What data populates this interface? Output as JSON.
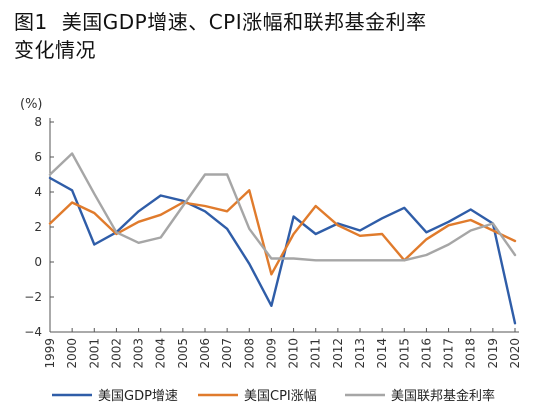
{
  "figure_label": "图1",
  "title_line1": "美国GDP增速、CPI涨幅和联邦基金利率",
  "title_line2": "变化情况",
  "chart_data": {
    "type": "line",
    "ylabel": "(%)",
    "ylim": [
      -4,
      8
    ],
    "yticks": [
      8,
      6,
      4,
      2,
      0,
      -2,
      -4
    ],
    "ytick_labels": [
      "8",
      "6",
      "4",
      "2",
      "0",
      "−2",
      "−4"
    ],
    "grid": false,
    "legend_position": "bottom",
    "x": [
      "1999",
      "2000",
      "2001",
      "2002",
      "2003",
      "2004",
      "2005",
      "2006",
      "2007",
      "2008",
      "2009",
      "2010",
      "2011",
      "2012",
      "2013",
      "2014",
      "2015",
      "2016",
      "2017",
      "2018",
      "2019",
      "2020"
    ],
    "series": [
      {
        "name": "美国GDP增速",
        "color": "#2f5da8",
        "values": [
          4.8,
          4.1,
          1.0,
          1.7,
          2.9,
          3.8,
          3.5,
          2.9,
          1.9,
          -0.1,
          -2.5,
          2.6,
          1.6,
          2.2,
          1.8,
          2.5,
          3.1,
          1.7,
          2.3,
          3.0,
          2.2,
          -3.5
        ]
      },
      {
        "name": "美国CPI涨幅",
        "color": "#e07b2c",
        "values": [
          2.2,
          3.4,
          2.8,
          1.6,
          2.3,
          2.7,
          3.4,
          3.2,
          2.9,
          4.1,
          -0.7,
          1.6,
          3.2,
          2.1,
          1.5,
          1.6,
          0.1,
          1.3,
          2.1,
          2.4,
          1.8,
          1.2
        ]
      },
      {
        "name": "美国联邦基金利率",
        "color": "#a6a6a6",
        "values": [
          5.0,
          6.2,
          3.9,
          1.7,
          1.1,
          1.4,
          3.2,
          5.0,
          5.0,
          1.9,
          0.2,
          0.2,
          0.1,
          0.1,
          0.1,
          0.1,
          0.1,
          0.4,
          1.0,
          1.8,
          2.2,
          0.4
        ]
      }
    ]
  }
}
